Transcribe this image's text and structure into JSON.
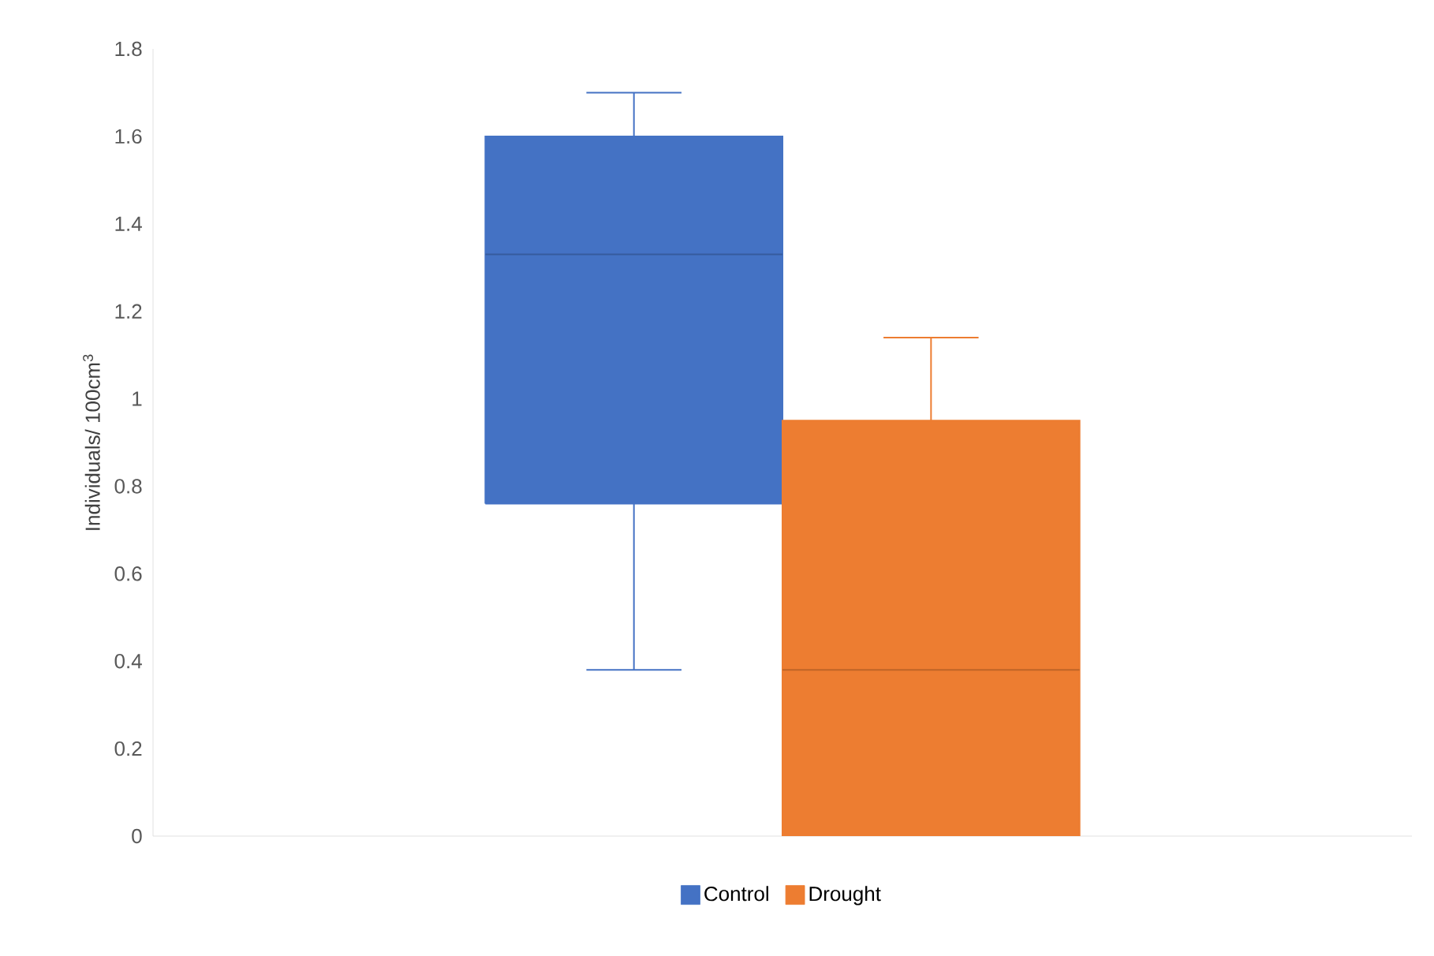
{
  "chart_data": {
    "type": "box",
    "ylabel": "Individuals/ 100cm$^{3}$",
    "categories": [
      null
    ],
    "series": [
      {
        "name": "Control",
        "color": "#4472c4",
        "boxes": [
          {
            "low": 0.38,
            "q1": 0.76,
            "median": 1.33,
            "q3": 1.6,
            "high": 1.7
          }
        ]
      },
      {
        "name": "Drought",
        "color": "#ed7d31",
        "boxes": [
          {
            "low": 0,
            "q1": 0,
            "median": 0.38,
            "q3": 0.95,
            "high": 1.14
          }
        ]
      }
    ],
    "ylim": [
      0,
      1.8
    ],
    "yticks": [
      0,
      0.2,
      0.4,
      0.6,
      0.8,
      1,
      1.2,
      1.4,
      1.6,
      1.8
    ],
    "legend": "bottom"
  }
}
